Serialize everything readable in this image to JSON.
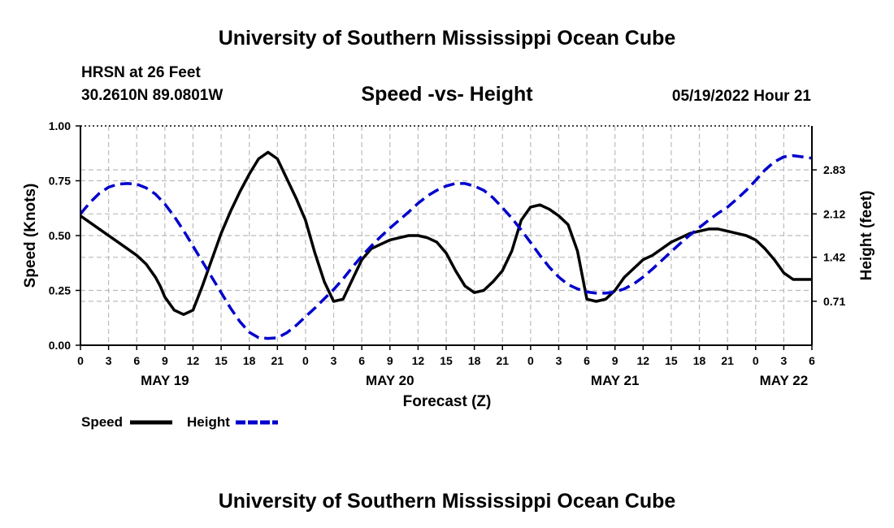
{
  "header": {
    "title_top": "University of Southern Mississippi Ocean Cube",
    "station": "HRSN at 26 Feet",
    "coords": "30.2610N  89.0801W",
    "datetime": "05/19/2022 Hour 21",
    "title_bottom": "University of Southern Mississippi Ocean Cube"
  },
  "chart_data": {
    "type": "line",
    "title": "Speed -vs- Height",
    "xlabel": "Forecast (Z)",
    "ylabel": "Speed (Knots)",
    "y2label": "Height (feet)",
    "x_range": [
      0,
      78
    ],
    "ylim": [
      0,
      1
    ],
    "y2lim": [
      0,
      3.54
    ],
    "x_ticks": [
      0,
      3,
      6,
      9,
      12,
      15,
      18,
      21,
      24,
      27,
      30,
      33,
      36,
      39,
      42,
      45,
      48,
      51,
      54,
      57,
      60,
      63,
      66,
      69,
      72,
      75,
      78
    ],
    "x_tick_labels": [
      "0",
      "3",
      "6",
      "9",
      "12",
      "15",
      "18",
      "21",
      "0",
      "3",
      "6",
      "9",
      "12",
      "15",
      "18",
      "21",
      "0",
      "3",
      "6",
      "9",
      "12",
      "15",
      "18",
      "21",
      "0",
      "3",
      "6"
    ],
    "date_labels": [
      {
        "x": 9,
        "label": "MAY 19"
      },
      {
        "x": 33,
        "label": "MAY 20"
      },
      {
        "x": 57,
        "label": "MAY 21"
      },
      {
        "x": 75,
        "label": "MAY 22"
      }
    ],
    "y_ticks": [
      0,
      0.25,
      0.5,
      0.75,
      1.0
    ],
    "y_tick_labels": [
      "0.00",
      "0.25",
      "0.50",
      "0.75",
      "1.00"
    ],
    "y2_ticks": [
      0.71,
      1.42,
      2.12,
      2.83
    ],
    "y2_tick_labels": [
      "0.71",
      "1.42",
      "2.12",
      "2.83"
    ],
    "grid": true,
    "series": [
      {
        "name": "Speed",
        "axis": "left",
        "color": "#000000",
        "dash": "solid",
        "x": [
          0,
          2,
          4,
          5,
          6,
          7,
          8,
          8.5,
          9,
          10,
          11,
          12,
          13,
          15,
          16,
          17,
          18,
          19,
          20,
          21,
          22,
          23,
          24,
          25,
          26,
          27,
          28,
          29,
          30,
          31,
          32,
          33,
          34,
          35,
          36,
          37,
          38,
          39,
          40,
          41,
          42,
          43,
          44,
          45,
          46,
          47,
          48,
          49,
          50,
          51,
          52,
          53,
          54,
          55,
          56,
          57,
          58,
          59,
          60,
          61,
          62,
          63,
          64,
          65,
          66,
          67,
          68,
          69,
          70,
          71,
          72,
          73,
          74,
          75,
          76,
          77,
          78
        ],
        "values": [
          0.59,
          0.53,
          0.47,
          0.44,
          0.41,
          0.37,
          0.31,
          0.27,
          0.22,
          0.16,
          0.14,
          0.16,
          0.27,
          0.51,
          0.61,
          0.7,
          0.78,
          0.85,
          0.88,
          0.85,
          0.76,
          0.67,
          0.57,
          0.42,
          0.29,
          0.2,
          0.21,
          0.3,
          0.39,
          0.44,
          0.46,
          0.48,
          0.49,
          0.5,
          0.5,
          0.49,
          0.47,
          0.42,
          0.34,
          0.27,
          0.24,
          0.25,
          0.29,
          0.34,
          0.43,
          0.57,
          0.63,
          0.64,
          0.62,
          0.59,
          0.55,
          0.43,
          0.21,
          0.2,
          0.21,
          0.25,
          0.31,
          0.35,
          0.39,
          0.41,
          0.44,
          0.47,
          0.49,
          0.51,
          0.52,
          0.53,
          0.53,
          0.52,
          0.51,
          0.5,
          0.48,
          0.44,
          0.39,
          0.33,
          0.3,
          0.3,
          0.3
        ]
      },
      {
        "name": "Height",
        "axis": "right",
        "color": "#0000cc",
        "dash": "dashed",
        "x": [
          0,
          1,
          2,
          3,
          4,
          5,
          6,
          7,
          8,
          9,
          10,
          11,
          12,
          13,
          14,
          15,
          16,
          17,
          18,
          19,
          20,
          21,
          22,
          23,
          24,
          25,
          26,
          27,
          28,
          29,
          30,
          31,
          32,
          33,
          34,
          35,
          36,
          37,
          38,
          39,
          40,
          41,
          42,
          43,
          44,
          45,
          46,
          47,
          48,
          49,
          50,
          51,
          52,
          53,
          54,
          55,
          56,
          57,
          58,
          59,
          60,
          61,
          62,
          63,
          64,
          65,
          66,
          67,
          68,
          69,
          70,
          71,
          72,
          73,
          74,
          75,
          76,
          77,
          78
        ],
        "values": [
          2.12,
          2.3,
          2.45,
          2.55,
          2.6,
          2.61,
          2.6,
          2.54,
          2.44,
          2.28,
          2.08,
          1.85,
          1.6,
          1.35,
          1.1,
          0.85,
          0.6,
          0.38,
          0.21,
          0.12,
          0.11,
          0.12,
          0.2,
          0.32,
          0.46,
          0.6,
          0.75,
          0.9,
          1.07,
          1.26,
          1.44,
          1.6,
          1.75,
          1.89,
          2.02,
          2.15,
          2.29,
          2.41,
          2.5,
          2.57,
          2.61,
          2.61,
          2.57,
          2.5,
          2.38,
          2.22,
          2.05,
          1.86,
          1.66,
          1.45,
          1.26,
          1.1,
          0.98,
          0.91,
          0.86,
          0.84,
          0.84,
          0.86,
          0.91,
          0.99,
          1.1,
          1.23,
          1.37,
          1.51,
          1.65,
          1.78,
          1.9,
          2.02,
          2.13,
          2.23,
          2.36,
          2.5,
          2.66,
          2.83,
          2.96,
          3.04,
          3.06,
          3.04,
          3.02
        ]
      }
    ],
    "legend": {
      "placement": "bottom-left",
      "items": [
        {
          "label": "Speed",
          "color": "#000000",
          "dash": "solid"
        },
        {
          "label": "Height",
          "color": "#0000cc",
          "dash": "dashed"
        }
      ]
    }
  }
}
